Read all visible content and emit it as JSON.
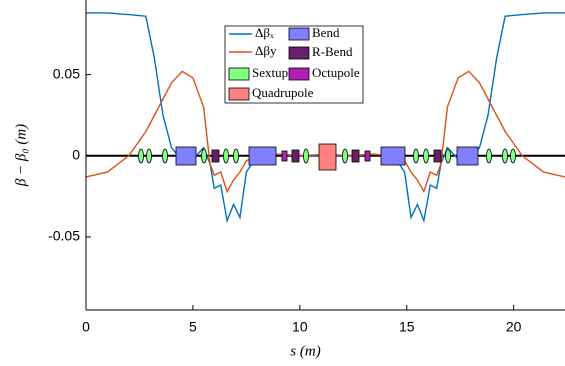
{
  "chart_data": {
    "type": "line",
    "x_label": "s (m)",
    "y_label": "β − β₀ (m)",
    "x": [
      0,
      1,
      2,
      2.8,
      3.2,
      3.6,
      4,
      4.5,
      5,
      5.5,
      5.8,
      6,
      6.3,
      6.6,
      6.9,
      7.2,
      7.5,
      8,
      9,
      10,
      11.2,
      12.4,
      13.4,
      14.4,
      14.9,
      15.2,
      15.5,
      15.8,
      16.1,
      16.4,
      16.6,
      16.9,
      17.4,
      17.9,
      18.4,
      18.8,
      19.2,
      19.6,
      20.4,
      21.4,
      22.4
    ],
    "series": [
      {
        "name": "Δβₓ",
        "color": "#0072bd",
        "values": [
          0.088,
          0.088,
          0.087,
          0.086,
          0.06,
          0.025,
          0.005,
          -0.003,
          -0.002,
          0.005,
          -0.005,
          -0.02,
          -0.018,
          -0.04,
          -0.03,
          -0.038,
          -0.01,
          0,
          0.001,
          0,
          0,
          0,
          0.001,
          0,
          -0.01,
          -0.038,
          -0.03,
          -0.04,
          -0.018,
          -0.02,
          -0.005,
          0.005,
          -0.002,
          -0.003,
          0.005,
          0.025,
          0.06,
          0.086,
          0.087,
          0.088,
          0.088
        ]
      },
      {
        "name": "Δβy",
        "color": "#d95319",
        "values": [
          -0.013,
          -0.01,
          0,
          0.015,
          0.025,
          0.035,
          0.045,
          0.052,
          0.048,
          0.03,
          -0.005,
          -0.012,
          -0.01,
          -0.022,
          -0.015,
          -0.01,
          -0.003,
          0,
          0.001,
          0,
          0.001,
          0,
          0.001,
          0,
          -0.003,
          -0.01,
          -0.015,
          -0.022,
          -0.01,
          -0.012,
          -0.005,
          0.03,
          0.048,
          0.052,
          0.045,
          0.035,
          0.025,
          0.015,
          0,
          -0.01,
          -0.013
        ]
      }
    ],
    "element_legend": [
      "Bend",
      "R-Bend",
      "Sextupole",
      "Octupole",
      "Quadrupole"
    ],
    "xlim": [
      0,
      22.4
    ],
    "ylim": [
      -0.095,
      0.096
    ],
    "xticks": [
      0,
      5,
      10,
      15,
      20
    ],
    "yticks": [
      -0.05,
      0,
      0.05
    ]
  }
}
